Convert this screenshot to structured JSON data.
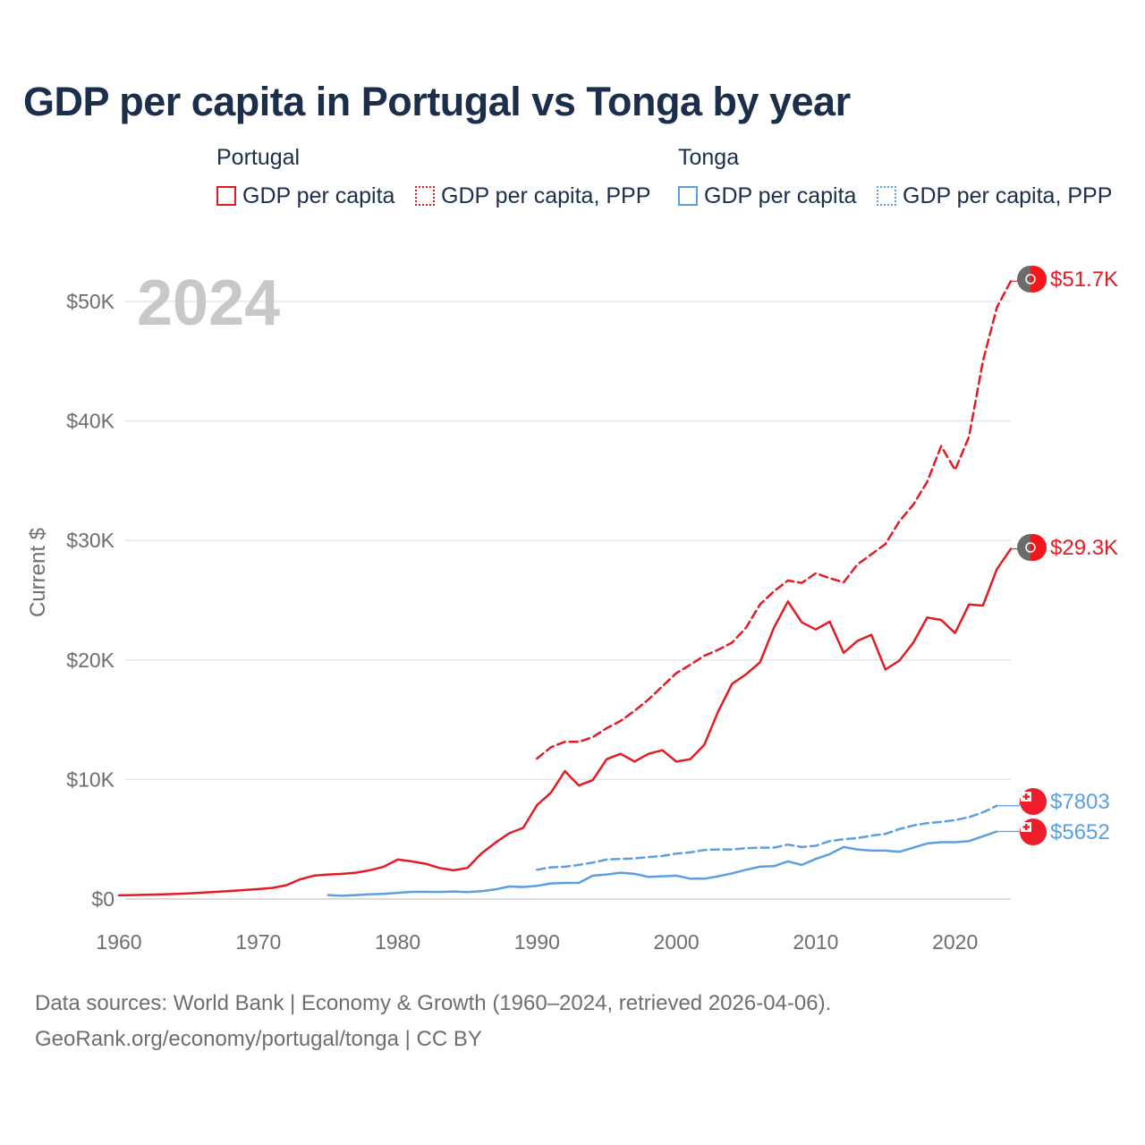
{
  "title": "GDP per capita in Portugal vs Tonga by year",
  "legend": {
    "groups": [
      {
        "name": "Portugal",
        "items": [
          {
            "label": "GDP per capita",
            "color": "#e31b23",
            "style": "solid"
          },
          {
            "label": "GDP per capita, PPP",
            "color": "#e31b23",
            "style": "dotted"
          }
        ]
      },
      {
        "name": "Tonga",
        "items": [
          {
            "label": "GDP per capita",
            "color": "#5b9fe0",
            "style": "solid"
          },
          {
            "label": "GDP per capita, PPP",
            "color": "#5b9fe0",
            "style": "dotted"
          }
        ]
      }
    ]
  },
  "year_watermark": "2024",
  "footer": {
    "line1": "Data sources: World Bank | Economy & Growth (1960–2024, retrieved 2026-04-06).",
    "line2": "GeoRank.org/economy/portugal/tonga | CC BY"
  },
  "chart_data": {
    "type": "line",
    "title": "GDP per capita in Portugal vs Tonga by year",
    "xlabel": "",
    "ylabel": "Current $",
    "xlim": [
      1960,
      2024
    ],
    "ylim": [
      0,
      52000
    ],
    "x_ticks": [
      1960,
      1970,
      1980,
      1990,
      2000,
      2010,
      2020
    ],
    "x_tick_labels": [
      "1960",
      "1970",
      "1980",
      "1990",
      "2000",
      "2010",
      "2020"
    ],
    "y_ticks": [
      0,
      10000,
      20000,
      30000,
      40000,
      50000
    ],
    "y_tick_labels": [
      "$0",
      "$10K",
      "$20K",
      "$30K",
      "$40K",
      "$50K"
    ],
    "grid": true,
    "series": [
      {
        "name": "Portugal GDP per capita",
        "color": "#e31b23",
        "dash": "solid",
        "end_label": "$29.3K",
        "flag": "portugal",
        "x": [
          1960,
          1961,
          1962,
          1963,
          1964,
          1965,
          1966,
          1967,
          1968,
          1969,
          1970,
          1971,
          1972,
          1973,
          1974,
          1975,
          1976,
          1977,
          1978,
          1979,
          1980,
          1981,
          1982,
          1983,
          1984,
          1985,
          1986,
          1987,
          1988,
          1989,
          1990,
          1991,
          1992,
          1993,
          1994,
          1995,
          1996,
          1997,
          1998,
          1999,
          2000,
          2001,
          2002,
          2003,
          2004,
          2005,
          2006,
          2007,
          2008,
          2009,
          2010,
          2011,
          2012,
          2013,
          2014,
          2015,
          2016,
          2017,
          2018,
          2019,
          2020,
          2021,
          2022,
          2023,
          2024
        ],
        "values": [
          310,
          330,
          350,
          380,
          420,
          470,
          530,
          600,
          670,
          750,
          830,
          930,
          1150,
          1650,
          1950,
          2050,
          2100,
          2200,
          2400,
          2700,
          3300,
          3150,
          2950,
          2600,
          2400,
          2600,
          3800,
          4700,
          5500,
          5950,
          7850,
          8900,
          10700,
          9500,
          9950,
          11700,
          12150,
          11500,
          12150,
          12450,
          11500,
          11700,
          12900,
          15700,
          18000,
          18800,
          19800,
          22700,
          24900,
          23150,
          22550,
          23200,
          20600,
          21600,
          22100,
          19200,
          19950,
          21450,
          23550,
          23350,
          22250,
          24650,
          24550,
          27600,
          29300
        ]
      },
      {
        "name": "Portugal GDP per capita, PPP",
        "color": "#e31b23",
        "dash": "dashed",
        "end_label": "$51.7K",
        "flag": "portugal",
        "x": [
          1990,
          1991,
          1992,
          1993,
          1994,
          1995,
          1996,
          1997,
          1998,
          1999,
          2000,
          2001,
          2002,
          2003,
          2004,
          2005,
          2006,
          2007,
          2008,
          2009,
          2010,
          2011,
          2012,
          2013,
          2014,
          2015,
          2016,
          2017,
          2018,
          2019,
          2020,
          2021,
          2022,
          2023,
          2024
        ],
        "values": [
          11750,
          12700,
          13150,
          13150,
          13550,
          14300,
          14900,
          15750,
          16700,
          17800,
          18900,
          19600,
          20350,
          20850,
          21450,
          22700,
          24650,
          25750,
          26650,
          26450,
          27250,
          26850,
          26500,
          28000,
          28850,
          29700,
          31600,
          33000,
          34900,
          37900,
          35900,
          38700,
          45000,
          49500,
          51700
        ]
      },
      {
        "name": "Tonga GDP per capita",
        "color": "#5b9fe0",
        "dash": "solid",
        "end_label": "$5652",
        "flag": "tonga",
        "x": [
          1975,
          1976,
          1977,
          1978,
          1979,
          1980,
          1981,
          1982,
          1983,
          1984,
          1985,
          1986,
          1987,
          1988,
          1989,
          1990,
          1991,
          1992,
          1993,
          1994,
          1995,
          1996,
          1997,
          1998,
          1999,
          2000,
          2001,
          2002,
          2003,
          2004,
          2005,
          2006,
          2007,
          2008,
          2009,
          2010,
          2011,
          2012,
          2013,
          2014,
          2015,
          2016,
          2017,
          2018,
          2019,
          2020,
          2021,
          2022,
          2023
        ],
        "values": [
          330,
          270,
          330,
          400,
          430,
          520,
          600,
          600,
          590,
          630,
          580,
          660,
          800,
          1050,
          1000,
          1100,
          1300,
          1350,
          1350,
          1950,
          2050,
          2200,
          2100,
          1850,
          1900,
          1950,
          1700,
          1700,
          1900,
          2150,
          2450,
          2700,
          2750,
          3150,
          2850,
          3350,
          3750,
          4350,
          4150,
          4050,
          4050,
          3950,
          4300,
          4650,
          4750,
          4750,
          4850,
          5250,
          5652
        ]
      },
      {
        "name": "Tonga GDP per capita, PPP",
        "color": "#5b9fe0",
        "dash": "dashed",
        "end_label": "$7803",
        "flag": "tonga",
        "x": [
          1990,
          1991,
          1992,
          1993,
          1994,
          1995,
          1996,
          1997,
          1998,
          1999,
          2000,
          2001,
          2002,
          2003,
          2004,
          2005,
          2006,
          2007,
          2008,
          2009,
          2010,
          2011,
          2012,
          2013,
          2014,
          2015,
          2016,
          2017,
          2018,
          2019,
          2020,
          2021,
          2022,
          2023
        ],
        "values": [
          2450,
          2650,
          2700,
          2850,
          3050,
          3300,
          3350,
          3400,
          3500,
          3600,
          3800,
          3900,
          4100,
          4150,
          4150,
          4250,
          4300,
          4300,
          4550,
          4350,
          4450,
          4850,
          5000,
          5100,
          5300,
          5450,
          5850,
          6150,
          6350,
          6450,
          6600,
          6850,
          7250,
          7803
        ]
      }
    ]
  }
}
